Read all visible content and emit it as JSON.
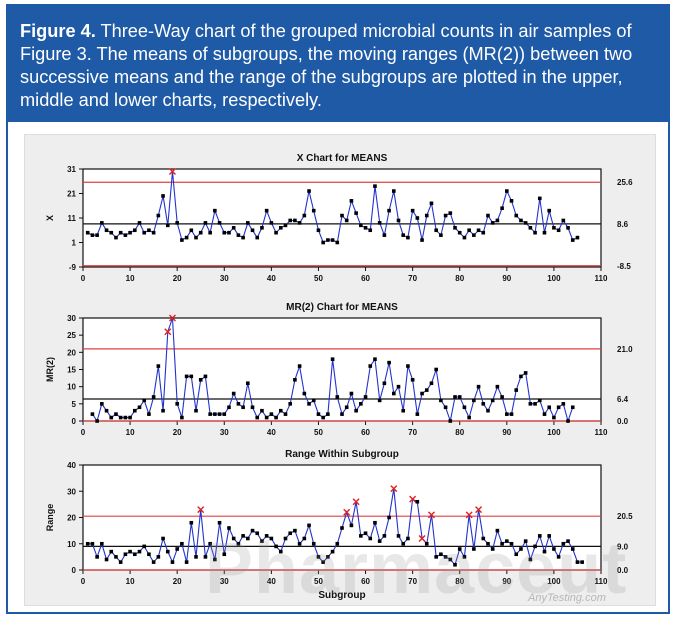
{
  "caption": {
    "label": "Figure 4.",
    "text": " Three-Way chart of the grouped microbial counts in air samples of Figure 3. The means of subgroups, the moving ranges (MR(2)) between two successive means and the range of the subgroups are plotted in the upper, middle and lower charts, respectively."
  },
  "watermark": {
    "main": "Pharmaceut",
    "site": "AnyTesting.com"
  },
  "colors": {
    "caption_bg": "#1f5aa6",
    "control_limit": "#e04040",
    "center_line": "#111111",
    "series": "#2233cc",
    "marker": "#000000",
    "flag": "#e02020"
  },
  "chart_data": [
    {
      "type": "line",
      "title": "X Chart for MEANS",
      "ylabel": "X",
      "xlabel": "",
      "xlim": [
        0,
        110
      ],
      "ylim": [
        -9,
        31
      ],
      "xticks": [
        0,
        10,
        20,
        30,
        40,
        50,
        60,
        70,
        80,
        90,
        100,
        110
      ],
      "yticks": [
        -9,
        1,
        11,
        21,
        31
      ],
      "ucl": 25.6,
      "center": 8.6,
      "lcl": -8.5,
      "limit_labels": [
        "25.6",
        "8.6",
        "-8.5"
      ],
      "x_start": 1,
      "values": [
        5,
        4,
        4,
        9,
        6,
        5,
        3,
        5,
        4,
        5,
        6,
        9,
        5,
        6,
        5,
        12,
        20,
        8,
        30,
        9,
        2,
        3,
        6,
        3,
        5,
        9,
        5,
        14,
        9,
        5,
        5,
        7,
        4,
        3,
        9,
        6,
        3,
        7,
        14,
        9,
        5,
        7,
        8,
        10,
        10,
        9,
        12,
        22,
        14,
        6,
        1,
        2,
        2,
        1,
        12,
        10,
        18,
        13,
        8,
        7,
        6,
        24,
        9,
        4,
        14,
        22,
        10,
        4,
        3,
        14,
        11,
        2,
        12,
        17,
        6,
        4,
        12,
        13,
        7,
        5,
        3,
        6,
        4,
        6,
        5,
        12,
        9,
        10,
        15,
        22,
        18,
        12,
        10,
        9,
        7,
        5,
        19,
        5,
        14,
        7,
        6,
        10,
        7,
        2,
        3
      ],
      "flagged": [
        19
      ]
    },
    {
      "type": "line",
      "title": "MR(2) Chart for MEANS",
      "ylabel": "MR(2)",
      "xlabel": "",
      "xlim": [
        0,
        110
      ],
      "ylim": [
        0,
        30
      ],
      "xticks": [
        0,
        10,
        20,
        30,
        40,
        50,
        60,
        70,
        80,
        90,
        100,
        110
      ],
      "yticks": [
        0,
        5,
        10,
        15,
        20,
        25,
        30
      ],
      "ucl": 21.0,
      "center": 6.4,
      "lcl": 0.0,
      "limit_labels": [
        "21.0",
        "6.4",
        "0.0"
      ],
      "x_start": 2,
      "values": [
        2,
        0,
        5,
        3,
        1,
        2,
        1,
        1,
        1,
        3,
        4,
        6,
        2,
        7,
        16,
        3,
        26,
        30,
        5,
        1,
        13,
        13,
        3,
        12,
        13,
        2,
        2,
        2,
        2,
        4,
        8,
        5,
        4,
        11,
        4,
        1,
        3,
        1,
        2,
        1,
        3,
        2,
        5,
        12,
        16,
        8,
        5,
        6,
        2,
        1,
        2,
        18,
        7,
        2,
        4,
        8,
        3,
        5,
        7,
        16,
        18,
        6,
        11,
        17,
        8,
        10,
        3,
        16,
        12,
        2,
        8,
        9,
        11,
        15,
        6,
        4,
        0,
        7,
        7,
        4,
        1,
        6,
        10,
        5,
        3,
        6,
        10,
        7,
        2,
        2,
        9,
        13,
        14,
        5,
        5,
        6,
        2,
        4,
        1,
        4,
        5,
        0,
        4
      ],
      "flagged": [
        18,
        19
      ]
    },
    {
      "type": "line",
      "title": "Range Within Subgroup",
      "ylabel": "Range",
      "xlabel": "Subgroup",
      "xlim": [
        0,
        110
      ],
      "ylim": [
        0,
        40
      ],
      "xticks": [
        0,
        10,
        20,
        30,
        40,
        50,
        60,
        70,
        80,
        90,
        100,
        110
      ],
      "yticks": [
        0,
        10,
        20,
        30,
        40
      ],
      "ucl": 20.5,
      "center": 9.0,
      "lcl": 0.0,
      "limit_labels": [
        "20.5",
        "9.0",
        "0.0"
      ],
      "x_start": 1,
      "values": [
        10,
        10,
        5,
        10,
        4,
        7,
        5,
        3,
        6,
        7,
        6,
        7,
        9,
        6,
        3,
        5,
        12,
        7,
        3,
        8,
        10,
        3,
        18,
        5,
        23,
        5,
        10,
        4,
        18,
        6,
        16,
        12,
        10,
        13,
        12,
        15,
        14,
        11,
        13,
        12,
        9,
        7,
        12,
        14,
        15,
        10,
        12,
        17,
        10,
        5,
        3,
        5,
        7,
        10,
        16,
        22,
        17,
        26,
        13,
        14,
        12,
        18,
        11,
        13,
        20,
        31,
        13,
        10,
        12,
        27,
        26,
        12,
        10,
        21,
        5,
        6,
        5,
        4,
        2,
        8,
        5,
        21,
        8,
        23,
        12,
        10,
        8,
        15,
        10,
        11,
        10,
        6,
        8,
        11,
        4,
        9,
        13,
        7,
        13,
        8,
        5,
        10,
        11,
        8,
        3,
        3
      ],
      "flagged": [
        25,
        56,
        58,
        66,
        70,
        72,
        74,
        82,
        84
      ]
    }
  ]
}
